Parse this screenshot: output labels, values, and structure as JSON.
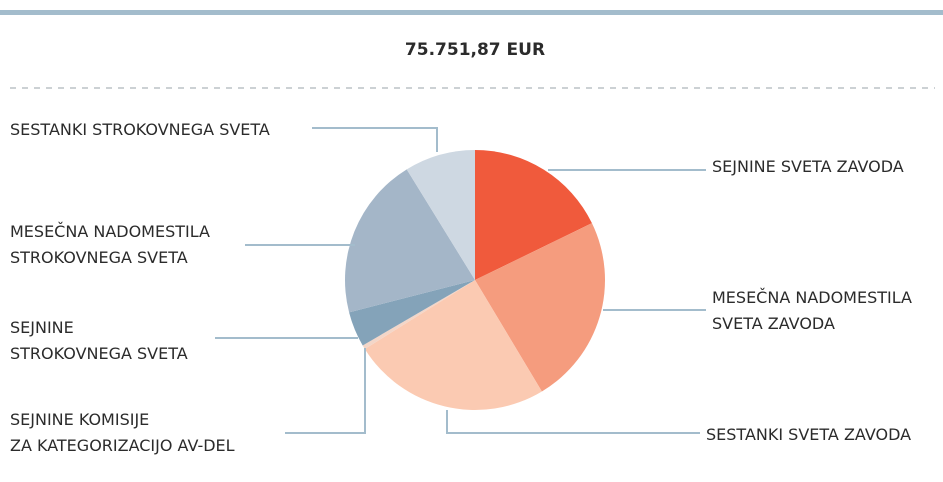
{
  "chart_data": {
    "type": "pie",
    "title": "75.751,87 EUR",
    "categories": [
      [
        "SEJNINE SVETA ZAVODA"
      ],
      [
        "MESEČNA NADOMESTILA",
        "SVETA ZAVODA"
      ],
      [
        "SESTANKI SVETA ZAVODA"
      ],
      [
        "SEJNINE KOMISIJE",
        "ZA KATEGORIZACIJO AV-DEL"
      ],
      [
        "SEJNINE",
        "STROKOVNEGA SVETA"
      ],
      [
        "MESEČNA NADOMESTILA",
        "STROKOVNEGA SVETA"
      ],
      [
        "SESTANKI STROKOVNEGA SVETA"
      ]
    ],
    "values": [
      17.8,
      23.6,
      24.7,
      0.5,
      4.4,
      20.2,
      8.8
    ],
    "colors": [
      "#f05a3c",
      "#f59c7e",
      "#fbcab2",
      "#f3d6c8",
      "#84a3b9",
      "#a4b6c8",
      "#ced8e2"
    ]
  }
}
